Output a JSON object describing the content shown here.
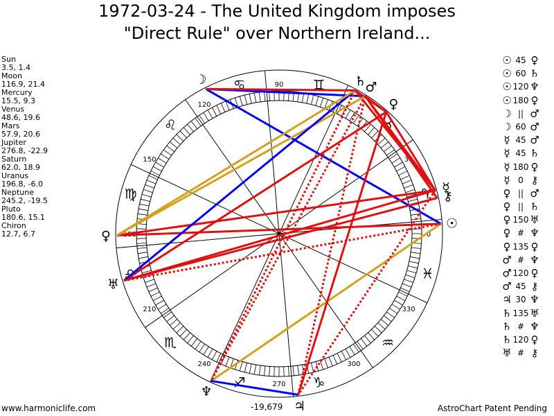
{
  "title": {
    "line1": "1972-03-24 - The United Kingdom imposes",
    "line2": "\"Direct Rule\" over Northern Ireland..."
  },
  "planets": [
    {
      "name": "Sun",
      "coords": "3.5, 1.4"
    },
    {
      "name": "Moon",
      "coords": "116.9, 21.4"
    },
    {
      "name": "Mercury",
      "coords": "15.5, 9.3"
    },
    {
      "name": "Venus",
      "coords": "48.6, 19.6"
    },
    {
      "name": "Mars",
      "coords": "57.9, 20.6"
    },
    {
      "name": "Jupiter",
      "coords": "276.8, -22.9"
    },
    {
      "name": "Saturn",
      "coords": "62.0, 18.9"
    },
    {
      "name": "Uranus",
      "coords": "196.8, -6.0"
    },
    {
      "name": "Neptune",
      "coords": "245.2, -19.5"
    },
    {
      "name": "Pluto",
      "coords": "180.6, 15.1"
    },
    {
      "name": "Chiron",
      "coords": "12.7, 6.7"
    }
  ],
  "aspects": [
    {
      "p1": "☉",
      "sym": "45",
      "p2": "♀"
    },
    {
      "p1": "☉",
      "sym": "60",
      "p2": "♄"
    },
    {
      "p1": "☉",
      "sym": "120",
      "p2": "♆"
    },
    {
      "p1": "☉",
      "sym": "180",
      "p2": "♀"
    },
    {
      "p1": "☽",
      "sym": "||",
      "p2": "♂"
    },
    {
      "p1": "☽",
      "sym": "60",
      "p2": "♂"
    },
    {
      "p1": "☿",
      "sym": "45",
      "p2": "♂"
    },
    {
      "p1": "☿",
      "sym": "45",
      "p2": "♄"
    },
    {
      "p1": "☿",
      "sym": "180",
      "p2": "♀"
    },
    {
      "p1": "☿",
      "sym": "0",
      "p2": "⚷"
    },
    {
      "p1": "♀",
      "sym": "||",
      "p2": "♂"
    },
    {
      "p1": "♀",
      "sym": "||",
      "p2": "♄"
    },
    {
      "p1": "♀",
      "sym": "150",
      "p2": "♅"
    },
    {
      "p1": "♀",
      "sym": "#",
      "p2": "♆"
    },
    {
      "p1": "♀",
      "sym": "135",
      "p2": "♀"
    },
    {
      "p1": "♂",
      "sym": "#",
      "p2": "♆"
    },
    {
      "p1": "♂",
      "sym": "120",
      "p2": "♀"
    },
    {
      "p1": "♂",
      "sym": "45",
      "p2": "⚷"
    },
    {
      "p1": "♃",
      "sym": "30",
      "p2": "♆"
    },
    {
      "p1": "♄",
      "sym": "135",
      "p2": "♅"
    },
    {
      "p1": "♄",
      "sym": "#",
      "p2": "♆"
    },
    {
      "p1": "♄",
      "sym": "120",
      "p2": "♀"
    },
    {
      "p1": "♅",
      "sym": "#",
      "p2": "⚷"
    }
  ],
  "wheel": {
    "degree_labels": [
      {
        "deg": 0,
        "text": "0"
      },
      {
        "deg": 30,
        "text": "30"
      },
      {
        "deg": 90,
        "text": "90"
      },
      {
        "deg": 120,
        "text": "120"
      },
      {
        "deg": 150,
        "text": "150"
      },
      {
        "deg": 180,
        "text": "180"
      },
      {
        "deg": 210,
        "text": "210"
      },
      {
        "deg": 240,
        "text": "240"
      },
      {
        "deg": 270,
        "text": "270"
      },
      {
        "deg": 300,
        "text": "300"
      },
      {
        "deg": 330,
        "text": "330"
      }
    ],
    "signs": [
      {
        "deg": 15,
        "glyph": "♈"
      },
      {
        "deg": 45,
        "glyph": "♉"
      },
      {
        "deg": 75,
        "glyph": "♊"
      },
      {
        "deg": 105,
        "glyph": "♋"
      },
      {
        "deg": 135,
        "glyph": "♌"
      },
      {
        "deg": 165,
        "glyph": "♍"
      },
      {
        "deg": 195,
        "glyph": "♎"
      },
      {
        "deg": 225,
        "glyph": "♏"
      },
      {
        "deg": 255,
        "glyph": "♐"
      },
      {
        "deg": 285,
        "glyph": "♑"
      },
      {
        "deg": 315,
        "glyph": "♒"
      },
      {
        "deg": 345,
        "glyph": "♓"
      }
    ],
    "house_cusps": [
      5,
      35,
      65,
      95,
      125,
      155,
      185,
      215,
      245,
      275,
      305,
      335
    ],
    "bodies": [
      {
        "key": "sun",
        "glyph": "☉",
        "deg": 3.5,
        "color": "#000000"
      },
      {
        "key": "moon",
        "glyph": "☽",
        "deg": 116.9,
        "color": "#000000"
      },
      {
        "key": "mercury",
        "glyph": "☿",
        "deg": 15.5,
        "color": "#000000"
      },
      {
        "key": "venus",
        "glyph": "♀",
        "deg": 48.6,
        "color": "#000000"
      },
      {
        "key": "mars",
        "glyph": "♂",
        "deg": 57.9,
        "color": "#000000"
      },
      {
        "key": "jupiter",
        "glyph": "♃",
        "deg": 276.8,
        "color": "#000000"
      },
      {
        "key": "saturn",
        "glyph": "♄",
        "deg": 62.0,
        "color": "#000000"
      },
      {
        "key": "uranus",
        "glyph": "♅",
        "deg": 196.8,
        "color": "#000000"
      },
      {
        "key": "neptune",
        "glyph": "♆",
        "deg": 245.2,
        "color": "#000000"
      },
      {
        "key": "pluto",
        "glyph": "♀",
        "deg": 180.6,
        "color": "#000000"
      },
      {
        "key": "chiron",
        "glyph": "⚷",
        "deg": 12.7,
        "color": "#000000"
      }
    ],
    "aspect_lines": [
      {
        "a": "sun",
        "b": "neptune",
        "color": "#d4a020",
        "dashed": false
      },
      {
        "a": "sun",
        "b": "pluto",
        "color": "#e01010",
        "dashed": false
      },
      {
        "a": "sun",
        "b": "moon",
        "color": "#0000ff",
        "dashed": false
      },
      {
        "a": "sun",
        "b": "uranus",
        "color": "#e01010",
        "dashed": true
      },
      {
        "a": "moon",
        "b": "mars",
        "color": "#0000ff",
        "dashed": false
      },
      {
        "a": "mercury",
        "b": "mars",
        "color": "#e01010",
        "dashed": false
      },
      {
        "a": "mercury",
        "b": "saturn",
        "color": "#e01010",
        "dashed": false
      },
      {
        "a": "mercury",
        "b": "pluto",
        "color": "#e01010",
        "dashed": false
      },
      {
        "a": "mercury",
        "b": "uranus",
        "color": "#e01010",
        "dashed": false
      },
      {
        "a": "venus",
        "b": "mars",
        "color": "#e01010",
        "dashed": false
      },
      {
        "a": "venus",
        "b": "saturn",
        "color": "#e01010",
        "dashed": false
      },
      {
        "a": "venus",
        "b": "uranus",
        "color": "#e01010",
        "dashed": false
      },
      {
        "a": "venus",
        "b": "jupiter",
        "color": "#e01010",
        "dashed": false
      },
      {
        "a": "venus",
        "b": "mercury",
        "color": "#e01010",
        "dashed": false
      },
      {
        "a": "mars",
        "b": "pluto",
        "color": "#d4a020",
        "dashed": false
      },
      {
        "a": "mars",
        "b": "jupiter",
        "color": "#e01010",
        "dashed": true
      },
      {
        "a": "mars",
        "b": "neptune",
        "color": "#e01010",
        "dashed": true
      },
      {
        "a": "mars",
        "b": "chiron",
        "color": "#e01010",
        "dashed": false
      },
      {
        "a": "saturn",
        "b": "uranus",
        "color": "#0000ff",
        "dashed": false
      },
      {
        "a": "saturn",
        "b": "neptune",
        "color": "#e01010",
        "dashed": true
      },
      {
        "a": "saturn",
        "b": "pluto",
        "color": "#d4a020",
        "dashed": false
      },
      {
        "a": "saturn",
        "b": "moon",
        "color": "#e01010",
        "dashed": false
      },
      {
        "a": "uranus",
        "b": "chiron",
        "color": "#e01010",
        "dashed": false
      },
      {
        "a": "jupiter",
        "b": "neptune",
        "color": "#0000ff",
        "dashed": false
      },
      {
        "a": "mercury",
        "b": "jupiter",
        "color": "#e01010",
        "dashed": true
      }
    ]
  },
  "footer": {
    "left": "www.harmoniclife.com",
    "center": "-19,679",
    "right": "AstroChart Patent Pending"
  }
}
